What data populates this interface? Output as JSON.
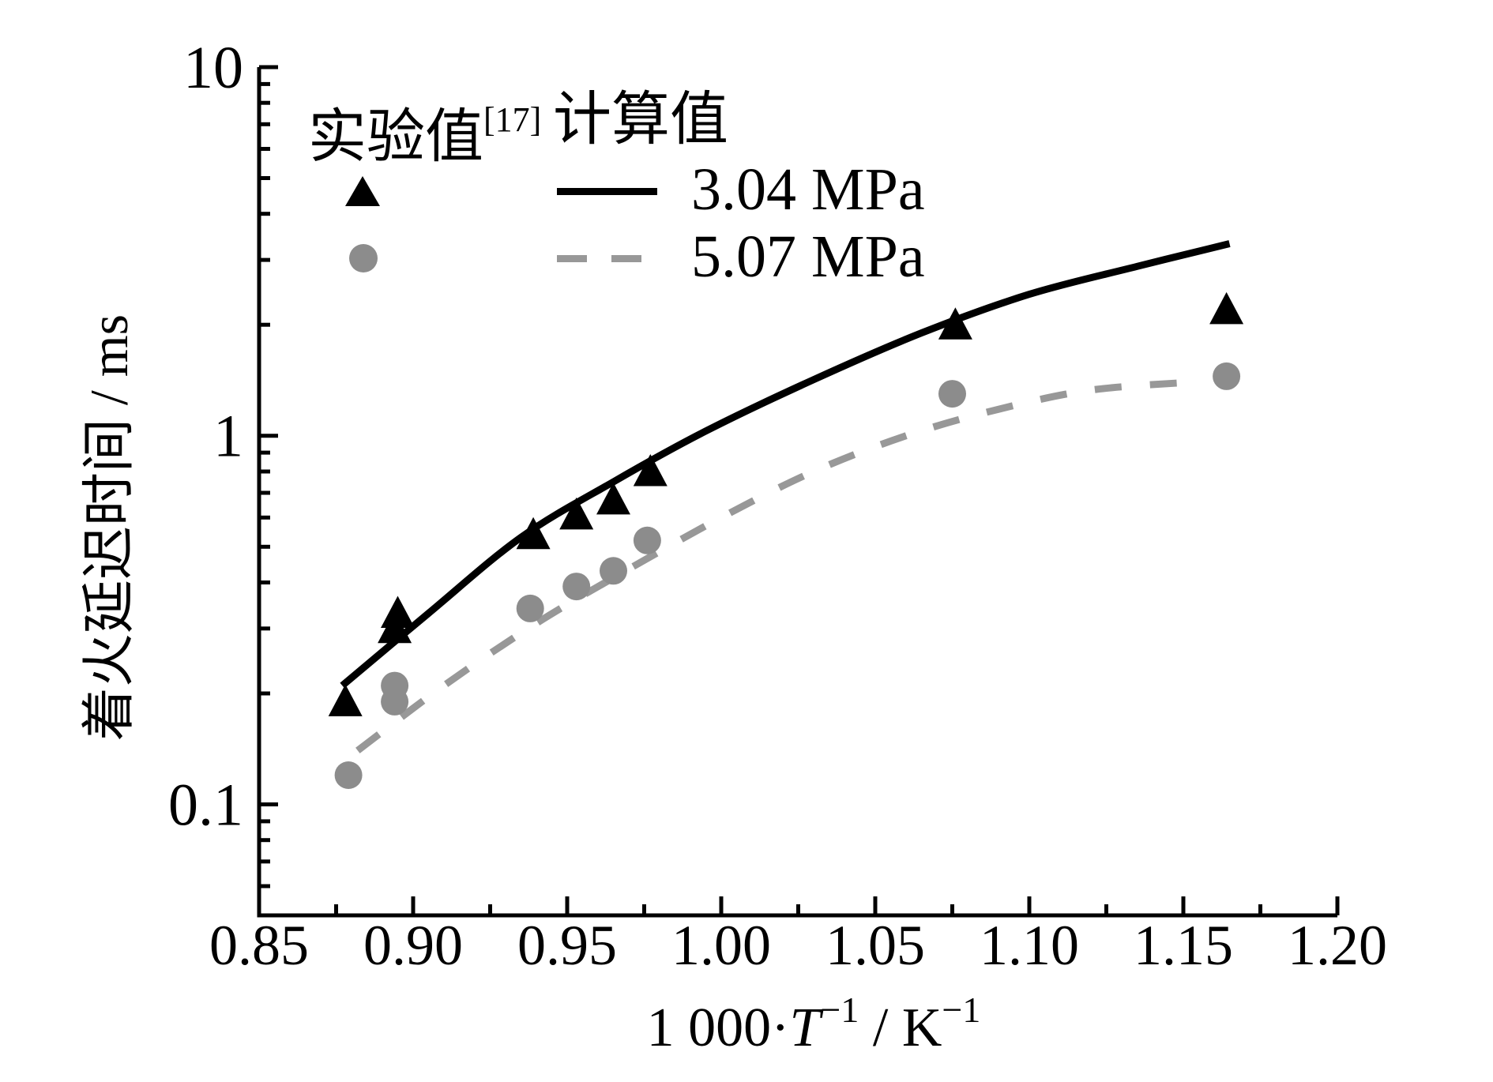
{
  "figure": {
    "background": "#ffffff",
    "text_color": "#000000"
  },
  "legend": {
    "experimental_header": "实验值",
    "experimental_ref": "[17]",
    "calculated_header": "计算值",
    "series1_label": "3.04 MPa",
    "series2_label": "5.07 MPa",
    "triangle_color": "#000000",
    "circle_color": "#8c8c8c",
    "solid_line_color": "#000000",
    "dashed_line_color": "#989898"
  },
  "axis_titles": {
    "y": "着火延迟时间 / ms",
    "x_prefix": "1 000·",
    "x_symbol": "T",
    "x_sup1": "−1",
    "x_mid": " / K",
    "x_sup2": "−1"
  },
  "chart_data": {
    "type": "scatter",
    "title": "",
    "xlabel": "1 000·T⁻¹ / K⁻¹",
    "ylabel": "着火延迟时间 / ms",
    "grid": false,
    "legend_position": "top-left",
    "x_axis": {
      "scale": "linear",
      "min": 0.85,
      "max": 1.2,
      "major_ticks": [
        0.85,
        0.9,
        0.95,
        1.0,
        1.05,
        1.1,
        1.15,
        1.2
      ],
      "tick_labels": [
        "0.85",
        "0.90",
        "0.95",
        "1.00",
        "1.05",
        "1.10",
        "1.15",
        "1.20"
      ],
      "minor_ticks": [
        0.875,
        0.925,
        0.975,
        1.025,
        1.075,
        1.125,
        1.175
      ]
    },
    "y_axis": {
      "scale": "log",
      "min": 0.05,
      "max": 10,
      "major_ticks": [
        0.1,
        1,
        10
      ],
      "tick_labels": [
        "0.1",
        "1",
        "10"
      ],
      "minor_ticks": [
        0.06,
        0.07,
        0.08,
        0.09,
        0.2,
        0.3,
        0.4,
        0.5,
        0.6,
        0.7,
        0.8,
        0.9,
        2,
        3,
        4,
        5,
        6,
        7,
        8,
        9
      ]
    },
    "series": [
      {
        "name": "实验值[17] 3.04 MPa",
        "role": "experimental",
        "kind": "scatter",
        "marker": "triangle",
        "color": "#000000",
        "points": [
          [
            0.878,
            0.19
          ],
          [
            0.894,
            0.3
          ],
          [
            0.895,
            0.33
          ],
          [
            0.939,
            0.54
          ],
          [
            0.953,
            0.61
          ],
          [
            0.965,
            0.67
          ],
          [
            0.977,
            0.8
          ],
          [
            1.076,
            2.0
          ],
          [
            1.164,
            2.2
          ]
        ]
      },
      {
        "name": "实验值[17] 5.07 MPa",
        "role": "experimental",
        "kind": "scatter",
        "marker": "circle",
        "color": "#8c8c8c",
        "points": [
          [
            0.879,
            0.12
          ],
          [
            0.894,
            0.19
          ],
          [
            0.894,
            0.21
          ],
          [
            0.938,
            0.34
          ],
          [
            0.953,
            0.39
          ],
          [
            0.965,
            0.43
          ],
          [
            0.976,
            0.52
          ],
          [
            1.075,
            1.3
          ],
          [
            1.164,
            1.45
          ]
        ]
      },
      {
        "name": "计算值 3.04 MPa",
        "role": "calculated",
        "kind": "line",
        "line_style": "solid",
        "color": "#000000",
        "points": [
          [
            0.877,
            0.21
          ],
          [
            0.905,
            0.33
          ],
          [
            0.935,
            0.53
          ],
          [
            0.965,
            0.75
          ],
          [
            0.995,
            1.03
          ],
          [
            1.03,
            1.42
          ],
          [
            1.065,
            1.9
          ],
          [
            1.1,
            2.42
          ],
          [
            1.135,
            2.88
          ],
          [
            1.165,
            3.32
          ]
        ]
      },
      {
        "name": "计算值 5.07 MPa",
        "role": "calculated",
        "kind": "line",
        "line_style": "dashed",
        "color": "#989898",
        "points": [
          [
            0.882,
            0.14
          ],
          [
            0.91,
            0.21
          ],
          [
            0.94,
            0.31
          ],
          [
            0.97,
            0.435
          ],
          [
            1.0,
            0.6
          ],
          [
            1.03,
            0.8
          ],
          [
            1.06,
            1.0
          ],
          [
            1.09,
            1.18
          ],
          [
            1.12,
            1.33
          ],
          [
            1.154,
            1.4
          ]
        ]
      }
    ]
  }
}
